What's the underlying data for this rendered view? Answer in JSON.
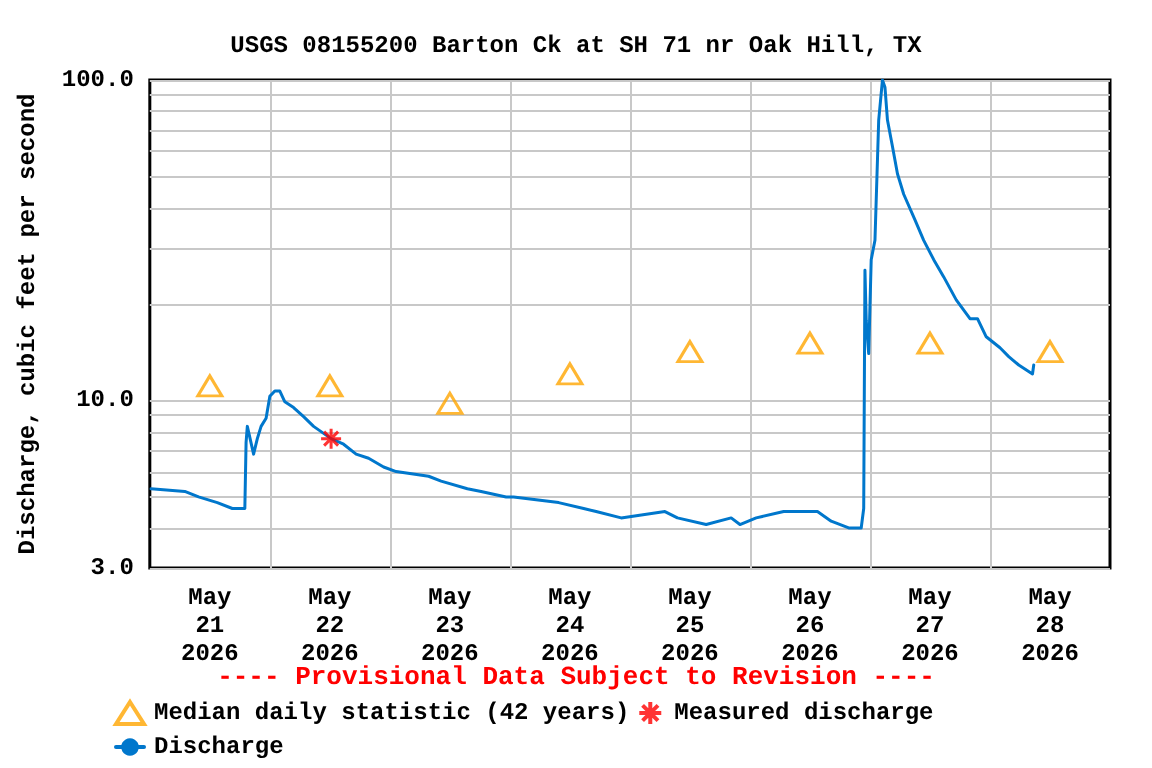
{
  "chart_data": {
    "type": "line",
    "title": "USGS 08155200 Barton Ck at SH 71 nr Oak Hill, TX",
    "ylabel": "Discharge, cubic feet per second",
    "annotations": [
      "---- Provisional Data Subject to Revision ----"
    ],
    "log": "y",
    "grid": true,
    "legend": "bottom",
    "xlim": [
      "2026-05-21T00:00",
      "2026-05-29T00:00"
    ],
    "xticks": [
      {
        "value": "2026-05-21T12:00",
        "label": "May\n21\n2026"
      },
      {
        "value": "2026-05-22T12:00",
        "label": "May\n22\n2026"
      },
      {
        "value": "2026-05-23T12:00",
        "label": "May\n23\n2026"
      },
      {
        "value": "2026-05-24T12:00",
        "label": "May\n24\n2026"
      },
      {
        "value": "2026-05-25T12:00",
        "label": "May\n25\n2026"
      },
      {
        "value": "2026-05-26T12:00",
        "label": "May\n26\n2026"
      },
      {
        "value": "2026-05-27T12:00",
        "label": "May\n27\n2026"
      },
      {
        "value": "2026-05-28T12:00",
        "label": "May\n28\n2026"
      },
      {
        "value": "2026-05-22T00:00",
        "label": null
      },
      {
        "value": "2026-05-23T00:00",
        "label": null
      },
      {
        "value": "2026-05-24T00:00",
        "label": null
      },
      {
        "value": "2026-05-25T00:00",
        "label": null
      },
      {
        "value": "2026-05-26T00:00",
        "label": null
      },
      {
        "value": "2026-05-27T00:00",
        "label": null
      },
      {
        "value": "2026-05-28T00:00",
        "label": null
      }
    ],
    "ylim": [
      3,
      100
    ],
    "yticks": [
      {
        "value": 3,
        "label": "3.0"
      },
      {
        "value": 4,
        "label": null
      },
      {
        "value": 5,
        "label": null
      },
      {
        "value": 6,
        "label": null
      },
      {
        "value": 7,
        "label": null
      },
      {
        "value": 8,
        "label": null
      },
      {
        "value": 9,
        "label": null
      },
      {
        "value": 10,
        "label": "10.0"
      },
      {
        "value": 20,
        "label": null
      },
      {
        "value": 30,
        "label": null
      },
      {
        "value": 40,
        "label": null
      },
      {
        "value": 50,
        "label": null
      },
      {
        "value": 60,
        "label": null
      },
      {
        "value": 70,
        "label": null
      },
      {
        "value": 80,
        "label": null
      },
      {
        "value": 90,
        "label": null
      },
      {
        "value": 100,
        "label": "100.0"
      }
    ],
    "series": [
      {
        "name": "Median daily statistic (42 years)",
        "type": "scatter",
        "marker": "triangle",
        "color": "#ffa500",
        "x": [
          "2026-05-21T12:00",
          "2026-05-22T12:00",
          "2026-05-23T12:00",
          "2026-05-24T12:00",
          "2026-05-25T12:00",
          "2026-05-26T12:00",
          "2026-05-27T12:00",
          "2026-05-28T12:00"
        ],
        "values": [
          11.1,
          11.1,
          9.8,
          12.1,
          14.2,
          15.1,
          15.1,
          14.2
        ]
      },
      {
        "name": "Measured discharge",
        "type": "scatter",
        "marker": "cross",
        "color": "#ff0000",
        "x": [
          "2026-05-22T12:15"
        ],
        "values": [
          7.6
        ]
      },
      {
        "name": "Discharge",
        "marker": "none",
        "color": "#0077cc",
        "x": [
          "2026-05-21T00:15",
          "2026-05-21T07:00",
          "2026-05-21T09:45",
          "2026-05-21T13:30",
          "2026-05-21T16:30",
          "2026-05-21T19:00",
          "2026-05-21T19:15",
          "2026-05-21T19:30",
          "2026-05-21T20:45",
          "2026-05-21T21:30",
          "2026-05-21T22:15",
          "2026-05-21T23:15",
          "2026-05-22T00:00",
          "2026-05-22T01:00",
          "2026-05-22T02:00",
          "2026-05-22T03:00",
          "2026-05-22T04:45",
          "2026-05-22T06:45",
          "2026-05-22T08:45",
          "2026-05-22T12:15",
          "2026-05-22T14:45",
          "2026-05-22T17:15",
          "2026-05-22T19:45",
          "2026-05-22T22:45",
          "2026-05-23T01:15",
          "2026-05-23T07:45",
          "2026-05-23T10:15",
          "2026-05-23T15:30",
          "2026-05-23T18:15",
          "2026-05-23T23:15",
          "2026-05-24T00:45",
          "2026-05-24T09:45",
          "2026-05-24T14:45",
          "2026-05-24T17:15",
          "2026-05-24T22:15",
          "2026-05-25T07:00",
          "2026-05-25T09:30",
          "2026-05-25T15:15",
          "2026-05-25T20:15",
          "2026-05-25T22:00",
          "2026-05-26T01:15",
          "2026-05-26T06:45",
          "2026-05-26T13:30",
          "2026-05-26T16:15",
          "2026-05-26T19:45",
          "2026-05-26T22:15",
          "2026-05-26T22:45",
          "2026-05-26T23:00",
          "2026-05-26T23:15",
          "2026-05-26T23:45",
          "2026-05-27T00:15",
          "2026-05-27T01:00",
          "2026-05-27T01:45",
          "2026-05-27T02:30",
          "2026-05-27T03:00",
          "2026-05-27T03:30",
          "2026-05-27T04:30",
          "2026-05-27T05:30",
          "2026-05-27T06:45",
          "2026-05-27T09:00",
          "2026-05-27T10:45",
          "2026-05-27T12:45",
          "2026-05-27T14:45",
          "2026-05-27T17:15",
          "2026-05-27T20:00",
          "2026-05-27T21:30",
          "2026-05-27T23:15",
          "2026-05-28T02:00",
          "2026-05-28T03:45",
          "2026-05-28T05:45",
          "2026-05-28T08:30",
          "2026-05-28T08:45"
        ],
        "values": [
          5.3,
          5.2,
          5.0,
          4.8,
          4.6,
          4.6,
          7.4,
          8.3,
          6.8,
          7.6,
          8.3,
          8.8,
          10.3,
          10.7,
          10.7,
          9.9,
          9.5,
          8.9,
          8.3,
          7.6,
          7.3,
          6.8,
          6.6,
          6.2,
          6.0,
          5.8,
          5.6,
          5.3,
          5.2,
          5.0,
          5.0,
          4.8,
          4.6,
          4.5,
          4.3,
          4.5,
          4.3,
          4.1,
          4.3,
          4.1,
          4.3,
          4.5,
          4.5,
          4.2,
          4.0,
          4.0,
          4.6,
          25.5,
          17.8,
          14.0,
          27.5,
          31.6,
          75,
          100,
          95,
          75,
          62,
          51,
          44,
          36.6,
          31.6,
          27.5,
          24.3,
          20.6,
          18.0,
          18.0,
          15.8,
          14.6,
          13.7,
          12.9,
          12.1,
          12.9
        ]
      }
    ]
  }
}
